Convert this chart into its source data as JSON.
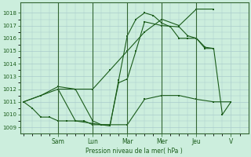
{
  "ylabel": "Pression niveau de la mer( hPa )",
  "ylim": [
    1008.5,
    1018.8
  ],
  "yticks": [
    1009,
    1010,
    1011,
    1012,
    1013,
    1014,
    1015,
    1016,
    1017,
    1018
  ],
  "day_labels": [
    "Sam",
    "Lun",
    "Mar",
    "Mer",
    "Jeu",
    "V"
  ],
  "day_tick_positions": [
    2.0,
    4.0,
    6.0,
    8.0,
    10.0,
    12.0
  ],
  "xlim": [
    -0.2,
    13.0
  ],
  "background_color": "#cceedd",
  "grid_color": "#aacccc",
  "line_color": "#1a5c1a",
  "spine_color": "#336633",
  "series1_x": [
    0,
    0.5,
    1,
    1.5,
    2,
    2.5,
    3,
    3.5,
    4,
    5,
    6,
    7,
    8,
    9,
    10,
    11,
    12
  ],
  "series1_y": [
    1011,
    1010.5,
    1009.8,
    1009.8,
    1009.5,
    1009.5,
    1009.5,
    1009.5,
    1009.2,
    1009.2,
    1009.2,
    1011.2,
    1011.5,
    1011.5,
    1011.2,
    1011,
    1011
  ],
  "series2_x": [
    0,
    1,
    2,
    3,
    4,
    5,
    6,
    7,
    8,
    9,
    10,
    11
  ],
  "series2_y": [
    1011,
    1011.5,
    1012,
    1012,
    1012,
    1013.5,
    1015.0,
    1016.5,
    1017.5,
    1017.0,
    1018.3,
    1018.3
  ],
  "series3_x": [
    0,
    1,
    2,
    3,
    4,
    4.5,
    5,
    5.5,
    6,
    6.5,
    7,
    7.5,
    8,
    8.5,
    9,
    9.5,
    10,
    10.5,
    11
  ],
  "series3_y": [
    1011,
    1011.5,
    1012.2,
    1012,
    1009.5,
    1009.2,
    1009.1,
    1012.7,
    1016.2,
    1017.5,
    1018.0,
    1017.8,
    1017.2,
    1016.9,
    1016.0,
    1016.0,
    1016.0,
    1015.3,
    1015.2
  ],
  "series4_x": [
    2,
    3,
    4,
    4.5,
    5,
    5.5,
    6,
    6.5,
    7,
    8,
    9,
    9.5,
    10,
    10.5,
    11,
    11.5,
    12
  ],
  "series4_y": [
    1012,
    1009.5,
    1009.3,
    1009.2,
    1009.2,
    1012.5,
    1012.8,
    1015.0,
    1017.3,
    1017.0,
    1016.9,
    1016.2,
    1016.0,
    1015.2,
    1015.2,
    1010.0,
    1011
  ]
}
